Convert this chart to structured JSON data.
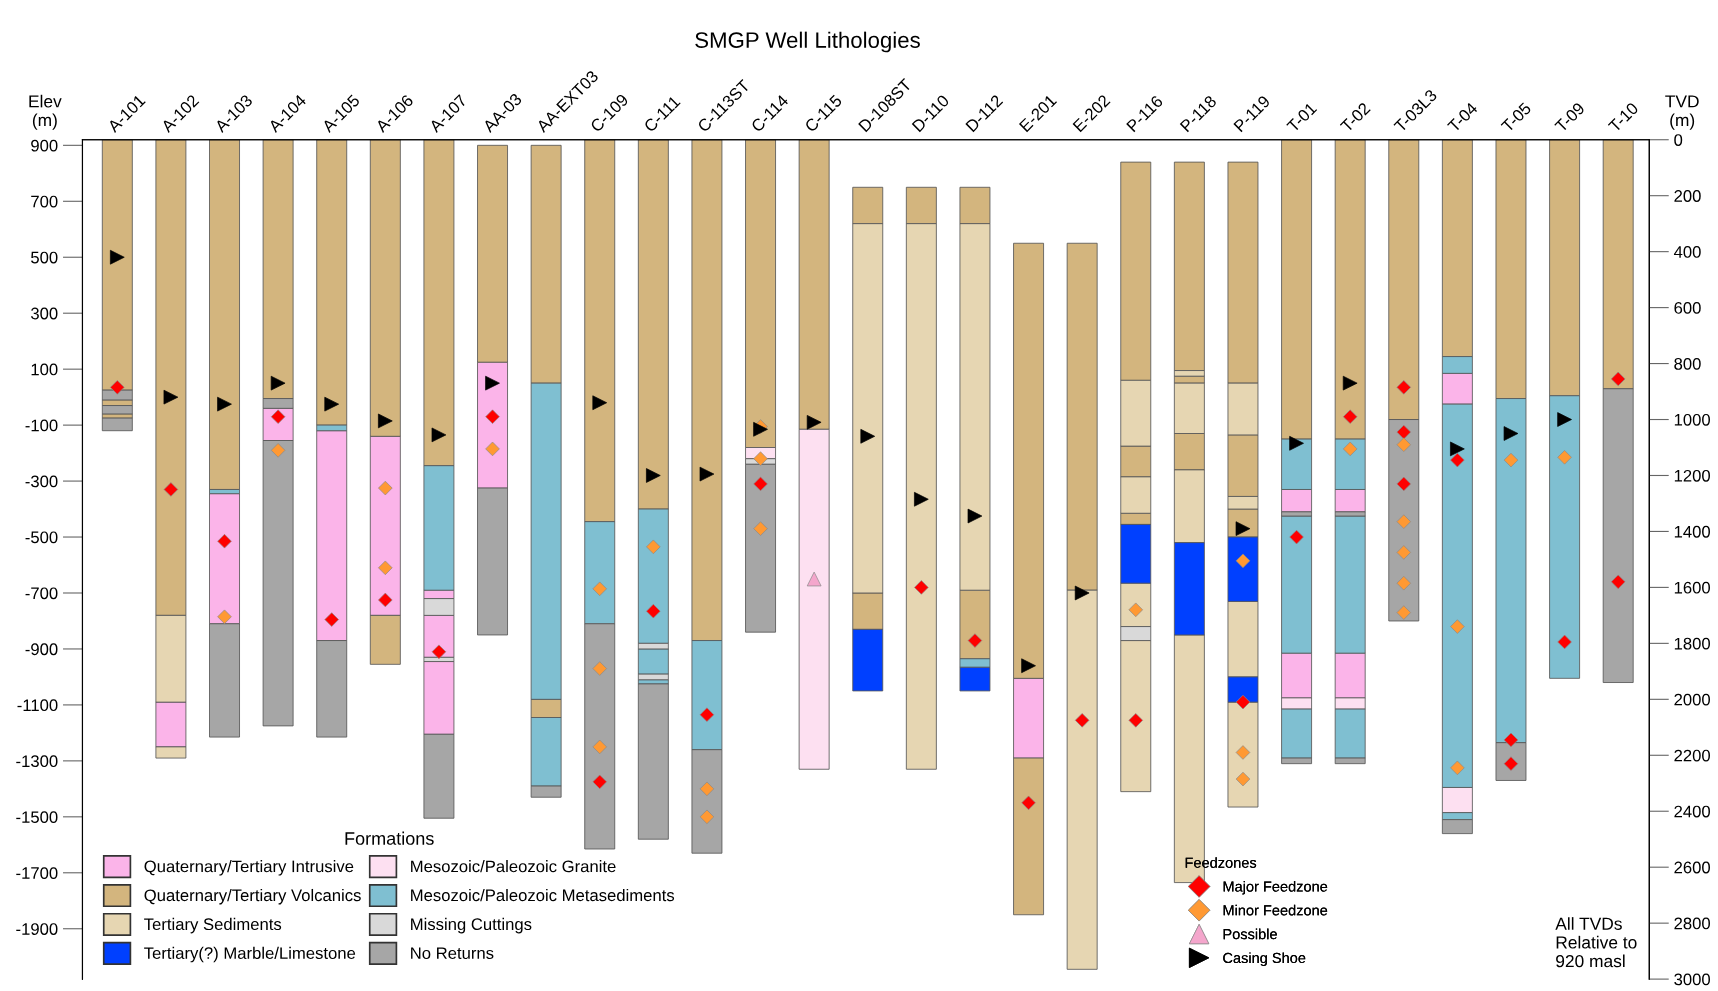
{
  "chart_data": {
    "type": "bar",
    "title": "SMGP Well Lithologies",
    "ylabel": "Elev\n(m)",
    "y2label": "TVD\n(m)",
    "legend_title": "Formations",
    "legend": "bottom",
    "annotations": [
      "Feedzones",
      "All TVDs\nRelative to\n920 masl"
    ],
    "categories": [
      "A-101",
      "A-102",
      "A-103",
      "A-104",
      "A-105",
      "A-106",
      "A-107",
      "AA-03",
      "AA-EXT03",
      "C-109",
      "C-111",
      "C-113ST",
      "C-114",
      "C-115",
      "D-108ST",
      "D-110",
      "D-112",
      "E-201",
      "E-202",
      "P-116",
      "P-118",
      "P-119",
      "T-01",
      "T-02",
      "T-03L3",
      "T-04",
      "T-05",
      "T-09",
      "T-10"
    ],
    "ylim": [
      -2080,
      920
    ],
    "yticks": [
      900,
      700,
      500,
      300,
      100,
      -100,
      -300,
      -500,
      -700,
      -900,
      -1100,
      -1300,
      -1500,
      -1700,
      -1900
    ],
    "y2lim": [
      3000,
      0
    ],
    "y2ticks": [
      0,
      200,
      400,
      600,
      800,
      1000,
      1200,
      1400,
      1600,
      1800,
      2000,
      2200,
      2400,
      2600,
      2800,
      3000
    ],
    "series": [
      {
        "name": "Quaternary/Tertiary Intrusive",
        "color": "#fbb4e9",
        "x": [
          "A-102",
          "A-103",
          "A-104",
          "A-105",
          "A-106",
          "A-107",
          "A-107",
          "A-107",
          "AA-03",
          "E-201",
          "T-01",
          "T-01",
          "T-02",
          "T-02",
          "T-04"
        ],
        "base": [
          -1250,
          -810,
          -155,
          -870,
          -780,
          -720,
          -930,
          -1205,
          -325,
          -1290,
          -410,
          -1075,
          -410,
          -1075,
          -25
        ],
        "values": [
          160,
          465,
          115,
          750,
          640,
          30,
          150,
          260,
          450,
          285,
          80,
          160,
          80,
          160,
          110
        ]
      },
      {
        "name": "Quaternary/Tertiary Volcanics",
        "color": "#d3b57e",
        "x": [
          "A-101",
          "A-101",
          "A-101",
          "A-102",
          "A-103",
          "A-104",
          "A-105",
          "A-106",
          "A-106",
          "A-107",
          "AA-03",
          "AA-EXT03",
          "AA-EXT03",
          "C-109",
          "C-111",
          "C-113ST",
          "C-114",
          "C-115",
          "D-108ST",
          "D-108ST",
          "D-110",
          "D-112",
          "D-112",
          "E-201",
          "E-201",
          "E-202",
          "P-116",
          "P-116",
          "P-116",
          "P-118",
          "P-118",
          "P-118",
          "P-119",
          "P-119",
          "P-119",
          "T-01",
          "T-02",
          "T-03L3",
          "T-04",
          "T-05",
          "T-09",
          "T-10"
        ],
        "base": [
          25,
          -30,
          -75,
          -780,
          -330,
          -5,
          -100,
          -140,
          -955,
          -245,
          125,
          50,
          -1145,
          -445,
          -400,
          -870,
          -180,
          -115,
          620,
          -830,
          620,
          620,
          -935,
          -1005,
          -1850,
          -690,
          60,
          -285,
          -455,
          95,
          50,
          -260,
          50,
          -355,
          -500,
          -150,
          -150,
          -80,
          145,
          -5,
          5,
          30
        ],
        "values": [
          895,
          20,
          15,
          1700,
          1250,
          925,
          1020,
          1060,
          175,
          1165,
          775,
          850,
          65,
          1365,
          1320,
          1790,
          1100,
          1035,
          130,
          130,
          130,
          130,
          245,
          1555,
          560,
          1240,
          780,
          110,
          40,
          745,
          25,
          130,
          790,
          220,
          100,
          1070,
          1070,
          1000,
          775,
          925,
          915,
          890
        ]
      },
      {
        "name": "Tertiary Sediments",
        "color": "#e6d6b2",
        "x": [
          "A-102",
          "A-102",
          "D-108ST",
          "D-110",
          "D-112",
          "E-202",
          "P-116",
          "P-116",
          "P-116",
          "P-116",
          "P-118",
          "P-118",
          "P-118",
          "P-118",
          "P-119",
          "P-119",
          "P-119",
          "P-119"
        ],
        "base": [
          -1090,
          -1290,
          -700,
          -1330,
          -690,
          -2045,
          -175,
          -415,
          -820,
          -1410,
          75,
          -130,
          -520,
          -1735,
          -135,
          -400,
          -1000,
          -1465
        ],
        "values": [
          310,
          40,
          1320,
          1950,
          1310,
          1355,
          235,
          130,
          155,
          540,
          20,
          180,
          260,
          885,
          185,
          45,
          270,
          375
        ]
      },
      {
        "name": "Tertiary(?) Marble/Limestone",
        "color": "#0040ff",
        "x": [
          "D-108ST",
          "D-112",
          "P-116",
          "P-118",
          "P-119",
          "P-119"
        ],
        "base": [
          -1050,
          -1050,
          -665,
          -850,
          -730,
          -1090
        ],
        "values": [
          220,
          85,
          210,
          330,
          230,
          90
        ]
      },
      {
        "name": "Mesozoic/Paleozoic Granite",
        "color": "#fde0f1",
        "x": [
          "C-114",
          "C-115",
          "T-01",
          "T-02",
          "T-04"
        ],
        "base": [
          -220,
          -1330,
          -1115,
          -1115,
          -1485
        ],
        "values": [
          40,
          1215,
          40,
          40,
          90
        ]
      },
      {
        "name": "Mesozoic/Paleozoic Metasediments",
        "color": "#7fbfd1",
        "x": [
          "A-103",
          "A-105",
          "A-107",
          "AA-EXT03",
          "AA-EXT03",
          "C-109",
          "C-111",
          "C-111",
          "C-111",
          "C-113ST",
          "D-112",
          "T-01",
          "T-01",
          "T-01",
          "T-02",
          "T-02",
          "T-02",
          "T-04",
          "T-04",
          "T-04",
          "T-05",
          "T-09"
        ],
        "base": [
          -345,
          -120,
          -690,
          -1080,
          -1390,
          -810,
          -880,
          -990,
          -1025,
          -1260,
          -965,
          -330,
          -915,
          -1290,
          -330,
          -915,
          -1290,
          85,
          -1395,
          -1510,
          -1235,
          -1005
        ],
        "values": [
          15,
          20,
          445,
          1130,
          245,
          365,
          480,
          90,
          15,
          390,
          30,
          180,
          490,
          175,
          180,
          490,
          175,
          60,
          1370,
          25,
          1230,
          1010
        ]
      },
      {
        "name": "Missing Cuttings",
        "color": "#d9d9d9",
        "x": [
          "A-107",
          "A-107",
          "C-111",
          "C-111",
          "C-114",
          "P-116"
        ],
        "base": [
          -780,
          -945,
          -900,
          -1010,
          -240,
          -870
        ],
        "values": [
          60,
          15,
          20,
          20,
          20,
          50
        ]
      },
      {
        "name": "No Returns",
        "color": "#a6a6a6",
        "x": [
          "A-101",
          "A-101",
          "A-101",
          "A-103",
          "A-104",
          "A-104",
          "A-105",
          "A-107",
          "AA-03",
          "AA-EXT03",
          "C-109",
          "C-111",
          "C-113ST",
          "C-114",
          "T-01",
          "T-01",
          "T-02",
          "T-02",
          "T-03L3",
          "T-04",
          "T-05",
          "T-10"
        ],
        "base": [
          -10,
          -60,
          -120,
          -1215,
          -40,
          -1175,
          -1215,
          -1505,
          -850,
          -1430,
          -1615,
          -1580,
          -1630,
          -840,
          -425,
          -1310,
          -425,
          -1310,
          -800,
          -1560,
          -1370,
          -1020
        ],
        "values": [
          35,
          30,
          45,
          405,
          35,
          1020,
          345,
          300,
          525,
          40,
          805,
          555,
          370,
          600,
          15,
          20,
          15,
          20,
          720,
          50,
          135,
          1050
        ]
      },
      {
        "name": "Major Feedzone",
        "type": "scatter",
        "marker": "diamond",
        "color": "#ff0000",
        "x": [
          "A-101",
          "A-102",
          "A-103",
          "A-104",
          "A-105",
          "A-106",
          "A-107",
          "AA-03",
          "C-109",
          "C-111",
          "C-113ST",
          "C-114",
          "D-110",
          "D-112",
          "E-201",
          "E-202",
          "P-116",
          "P-119",
          "T-01",
          "T-02",
          "T-03L3",
          "T-03L3",
          "T-03L3",
          "T-04",
          "T-05",
          "T-05",
          "T-09",
          "T-10",
          "T-10"
        ],
        "values": [
          35,
          -330,
          -515,
          -70,
          -795,
          -725,
          -910,
          -70,
          -1375,
          -765,
          -1135,
          -310,
          -680,
          -870,
          -1450,
          -1155,
          -1155,
          -1090,
          -500,
          -70,
          35,
          -125,
          -310,
          -225,
          -1225,
          -1310,
          -875,
          65,
          -660
        ]
      },
      {
        "name": "Minor Feedzone",
        "type": "scatter",
        "marker": "diamond",
        "color": "#ff9933",
        "x": [
          "A-103",
          "A-104",
          "A-106",
          "A-106",
          "AA-03",
          "C-109",
          "C-109",
          "C-109",
          "C-111",
          "C-113ST",
          "C-113ST",
          "C-114",
          "C-114",
          "C-114",
          "P-116",
          "P-119",
          "P-119",
          "P-119",
          "T-02",
          "T-03L3",
          "T-03L3",
          "T-03L3",
          "T-03L3",
          "T-03L3",
          "T-04",
          "T-04",
          "T-05",
          "T-09"
        ],
        "values": [
          -785,
          -190,
          -325,
          -610,
          -185,
          -685,
          -970,
          -1250,
          -535,
          -1400,
          -1500,
          -105,
          -220,
          -470,
          -760,
          -585,
          -1270,
          -1365,
          -185,
          -170,
          -445,
          -555,
          -665,
          -770,
          -820,
          -1325,
          -225,
          -215
        ]
      },
      {
        "name": "Possible",
        "type": "scatter",
        "marker": "triangle",
        "color": "#f4a6cc",
        "x": [
          "C-115"
        ],
        "values": [
          -650
        ]
      },
      {
        "name": "Casing Shoe",
        "type": "scatter",
        "marker": "triangle-right",
        "color": "#000000",
        "x": [
          "A-101",
          "A-102",
          "A-103",
          "A-104",
          "A-105",
          "A-106",
          "A-107",
          "AA-03",
          "C-109",
          "C-111",
          "C-113ST",
          "C-114",
          "C-115",
          "D-108ST",
          "D-110",
          "D-112",
          "E-201",
          "E-202",
          "P-119",
          "T-01",
          "T-02",
          "T-04",
          "T-05",
          "T-09"
        ],
        "values": [
          500,
          0,
          -25,
          50,
          -25,
          -85,
          -135,
          50,
          -20,
          -280,
          -275,
          -115,
          -90,
          -140,
          -365,
          -425,
          -960,
          -700,
          -470,
          -165,
          50,
          -185,
          -130,
          -80
        ]
      }
    ]
  }
}
